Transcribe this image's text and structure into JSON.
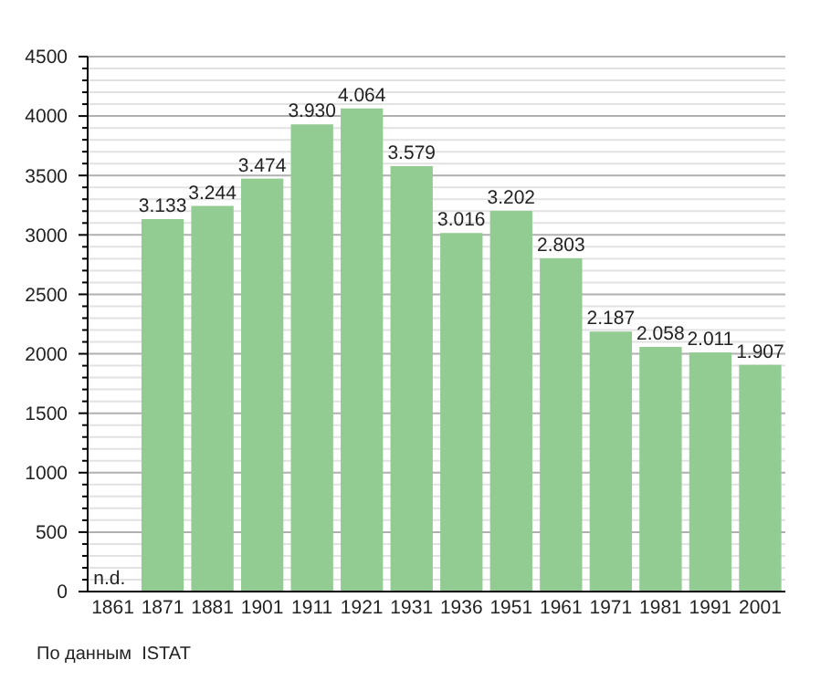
{
  "chart_data": {
    "type": "bar",
    "categories": [
      "1861",
      "1871",
      "1881",
      "1901",
      "1911",
      "1921",
      "1931",
      "1936",
      "1951",
      "1961",
      "1971",
      "1981",
      "1991",
      "2001"
    ],
    "values": [
      null,
      3133,
      3244,
      3474,
      3930,
      4064,
      3579,
      3016,
      3202,
      2803,
      2187,
      2058,
      2011,
      1907
    ],
    "value_labels": [
      "n.d.",
      "3.133",
      "3.244",
      "3.474",
      "3.930",
      "4.064",
      "3.579",
      "3.016",
      "3.202",
      "2.803",
      "2.187",
      "2.058",
      "2.011",
      "1.907"
    ],
    "color": "#93cc93",
    "ylim": [
      0,
      4500
    ],
    "yticks": [
      0,
      {
        "value": 100,
        "label": null
      },
      {
        "value": 200,
        "label": null
      },
      {
        "value": 300,
        "label": null
      },
      {
        "value": 400,
        "label": null
      },
      500,
      {
        "value": 600,
        "label": null
      },
      {
        "value": 700,
        "label": null
      },
      {
        "value": 800,
        "label": null
      },
      {
        "value": 900,
        "label": null
      },
      1000,
      {
        "value": 1100,
        "label": null
      },
      {
        "value": 1200,
        "label": null
      },
      {
        "value": 1300,
        "label": null
      },
      {
        "value": 1400,
        "label": null
      },
      1500,
      {
        "value": 1600,
        "label": null
      },
      {
        "value": 1700,
        "label": null
      },
      {
        "value": 1800,
        "label": null
      },
      {
        "value": 1900,
        "label": null
      },
      2000,
      {
        "value": 2100,
        "label": null
      },
      {
        "value": 2200,
        "label": null
      },
      {
        "value": 2300,
        "label": null
      },
      {
        "value": 2400,
        "label": null
      },
      2500,
      {
        "value": 2600,
        "label": null
      },
      {
        "value": 2700,
        "label": null
      },
      {
        "value": 2800,
        "label": null
      },
      {
        "value": 2900,
        "label": null
      },
      3000,
      {
        "value": 3100,
        "label": null
      },
      {
        "value": 3200,
        "label": null
      },
      {
        "value": 3300,
        "label": null
      },
      {
        "value": 3400,
        "label": null
      },
      3500,
      {
        "value": 3600,
        "label": null
      },
      {
        "value": 3700,
        "label": null
      },
      {
        "value": 3800,
        "label": null
      },
      {
        "value": 3900,
        "label": null
      },
      4000,
      {
        "value": 4100,
        "label": null
      },
      {
        "value": 4200,
        "label": null
      },
      {
        "value": 4300,
        "label": null
      },
      {
        "value": 4400,
        "label": null
      },
      4500
    ],
    "grid": "y",
    "annotations": [
      "По данным  ISTAT"
    ]
  }
}
